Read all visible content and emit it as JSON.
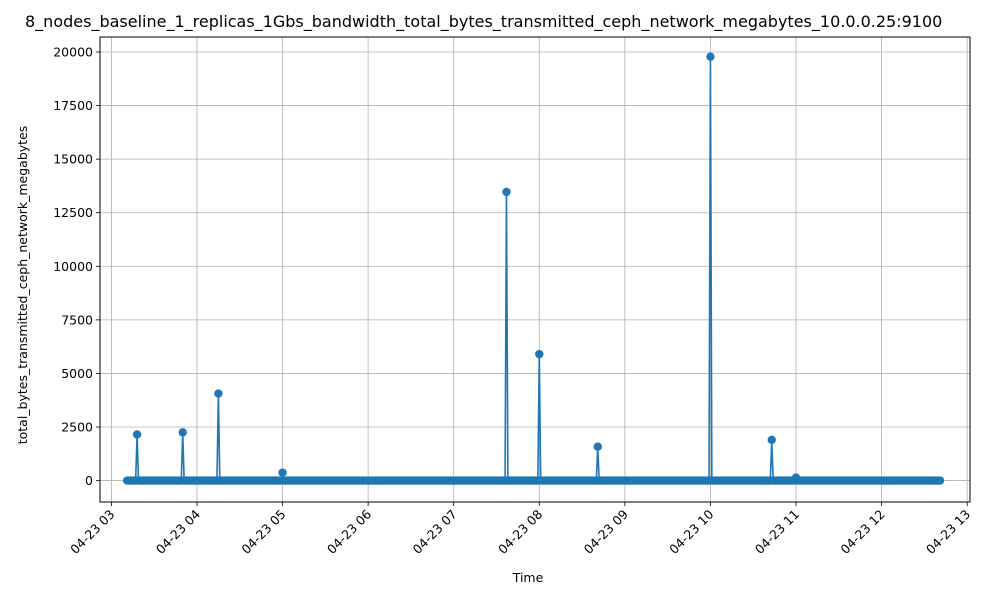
{
  "chart_data": {
    "type": "line",
    "title": "8_nodes_baseline_1_replicas_1Gbs_bandwidth_total_bytes_transmitted_ceph_network_megabytes_10.0.0.25:9100",
    "xlabel": "Time",
    "ylabel": "total_bytes_transmitted_ceph_network_megabytes",
    "x_axis_type": "time",
    "xlim": [
      "04-23 02:52",
      "04-23 13:02"
    ],
    "ylim": [
      -1000,
      20700
    ],
    "xticks": [
      "04-23 03",
      "04-23 04",
      "04-23 05",
      "04-23 06",
      "04-23 07",
      "04-23 08",
      "04-23 09",
      "04-23 10",
      "04-23 11",
      "04-23 12",
      "04-23 13"
    ],
    "yticks": [
      0,
      2500,
      5000,
      7500,
      10000,
      12500,
      15000,
      17500,
      20000
    ],
    "grid": true,
    "marker": "circle",
    "color": "#1f77b4",
    "baseline_value": 0,
    "time_start": "04-23 03:11",
    "time_end": "04-23 12:41",
    "sample_interval_minutes": 1,
    "spikes": [
      {
        "x": "04-23 03:18",
        "y": 2150
      },
      {
        "x": "04-23 03:50",
        "y": 2250
      },
      {
        "x": "04-23 04:15",
        "y": 4060
      },
      {
        "x": "04-23 05:00",
        "y": 370
      },
      {
        "x": "04-23 07:37",
        "y": 13470
      },
      {
        "x": "04-23 08:00",
        "y": 5900
      },
      {
        "x": "04-23 08:41",
        "y": 1580
      },
      {
        "x": "04-23 10:00",
        "y": 19780
      },
      {
        "x": "04-23 10:43",
        "y": 1900
      },
      {
        "x": "04-23 11:00",
        "y": 140
      }
    ]
  }
}
